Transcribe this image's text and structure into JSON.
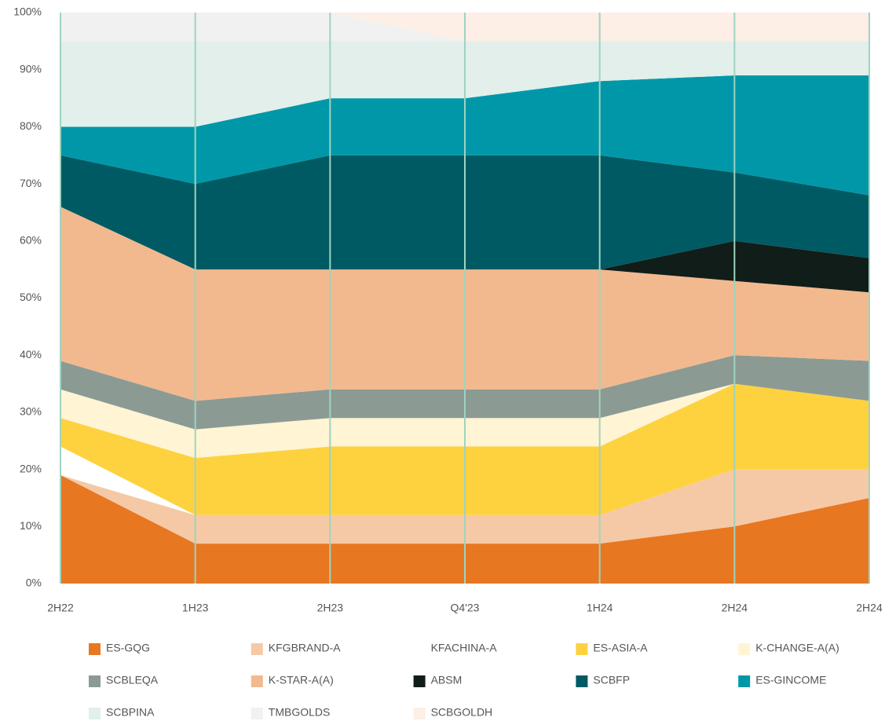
{
  "chart_data": {
    "type": "stacked-area",
    "categories": [
      "2H22",
      "1H23",
      "2H23",
      "Q4'23",
      "1H24",
      "2H24",
      "2H24"
    ],
    "series": [
      {
        "name": "ES-GQG",
        "color": "#e87722",
        "values": [
          19,
          7,
          7,
          7,
          7,
          10,
          15
        ]
      },
      {
        "name": "KFGBRAND-A",
        "color": "#f5c9a6",
        "values": [
          0,
          5,
          5,
          5,
          5,
          10,
          5
        ]
      },
      {
        "name": "KFACHINA-A",
        "color": "#ffffff",
        "values": [
          5,
          0,
          0,
          0,
          0,
          0,
          0
        ]
      },
      {
        "name": "ES-ASIA-A",
        "color": "#fdd23e",
        "values": [
          5,
          10,
          12,
          12,
          12,
          15,
          12
        ]
      },
      {
        "name": "K-CHANGE-A(A)",
        "color": "#fff4d4",
        "values": [
          5,
          5,
          5,
          5,
          5,
          0,
          0
        ]
      },
      {
        "name": "SCBLEQA",
        "color": "#8c9a94",
        "values": [
          5,
          5,
          5,
          5,
          5,
          5,
          7
        ]
      },
      {
        "name": "K-STAR-A(A)",
        "color": "#f2b98e",
        "values": [
          27,
          23,
          21,
          21,
          21,
          13,
          12
        ]
      },
      {
        "name": "ABSM",
        "color": "#111d18",
        "values": [
          0,
          0,
          0,
          0,
          0,
          7,
          6
        ]
      },
      {
        "name": "SCBFP",
        "color": "#005a64",
        "values": [
          9,
          15,
          20,
          20,
          20,
          12,
          11
        ]
      },
      {
        "name": "ES-GINCOME",
        "color": "#0098a8",
        "values": [
          5,
          10,
          10,
          10,
          13,
          17,
          21
        ]
      },
      {
        "name": "SCBPINA",
        "color": "#e2efea",
        "values": [
          15,
          15,
          10,
          10,
          7,
          6,
          6
        ]
      },
      {
        "name": "TMBGOLDS",
        "color": "#f1f1f1",
        "values": [
          5,
          5,
          5,
          0,
          0,
          0,
          0
        ]
      },
      {
        "name": "SCBGOLDH",
        "color": "#fdeee6",
        "values": [
          0,
          0,
          0,
          5,
          5,
          5,
          5
        ]
      }
    ],
    "ylim": [
      0,
      100
    ],
    "yticks": [
      {
        "value": 0,
        "label": "0%"
      },
      {
        "value": 10,
        "label": "10%"
      },
      {
        "value": 20,
        "label": "20%"
      },
      {
        "value": 30,
        "label": "30%"
      },
      {
        "value": 40,
        "label": "40%"
      },
      {
        "value": 50,
        "label": "50%"
      },
      {
        "value": 60,
        "label": "60%"
      },
      {
        "value": 70,
        "label": "70%"
      },
      {
        "value": 80,
        "label": "80%"
      },
      {
        "value": 90,
        "label": "90%"
      },
      {
        "value": 100,
        "label": "100%"
      }
    ],
    "grid_color": "#9fd3c0"
  }
}
